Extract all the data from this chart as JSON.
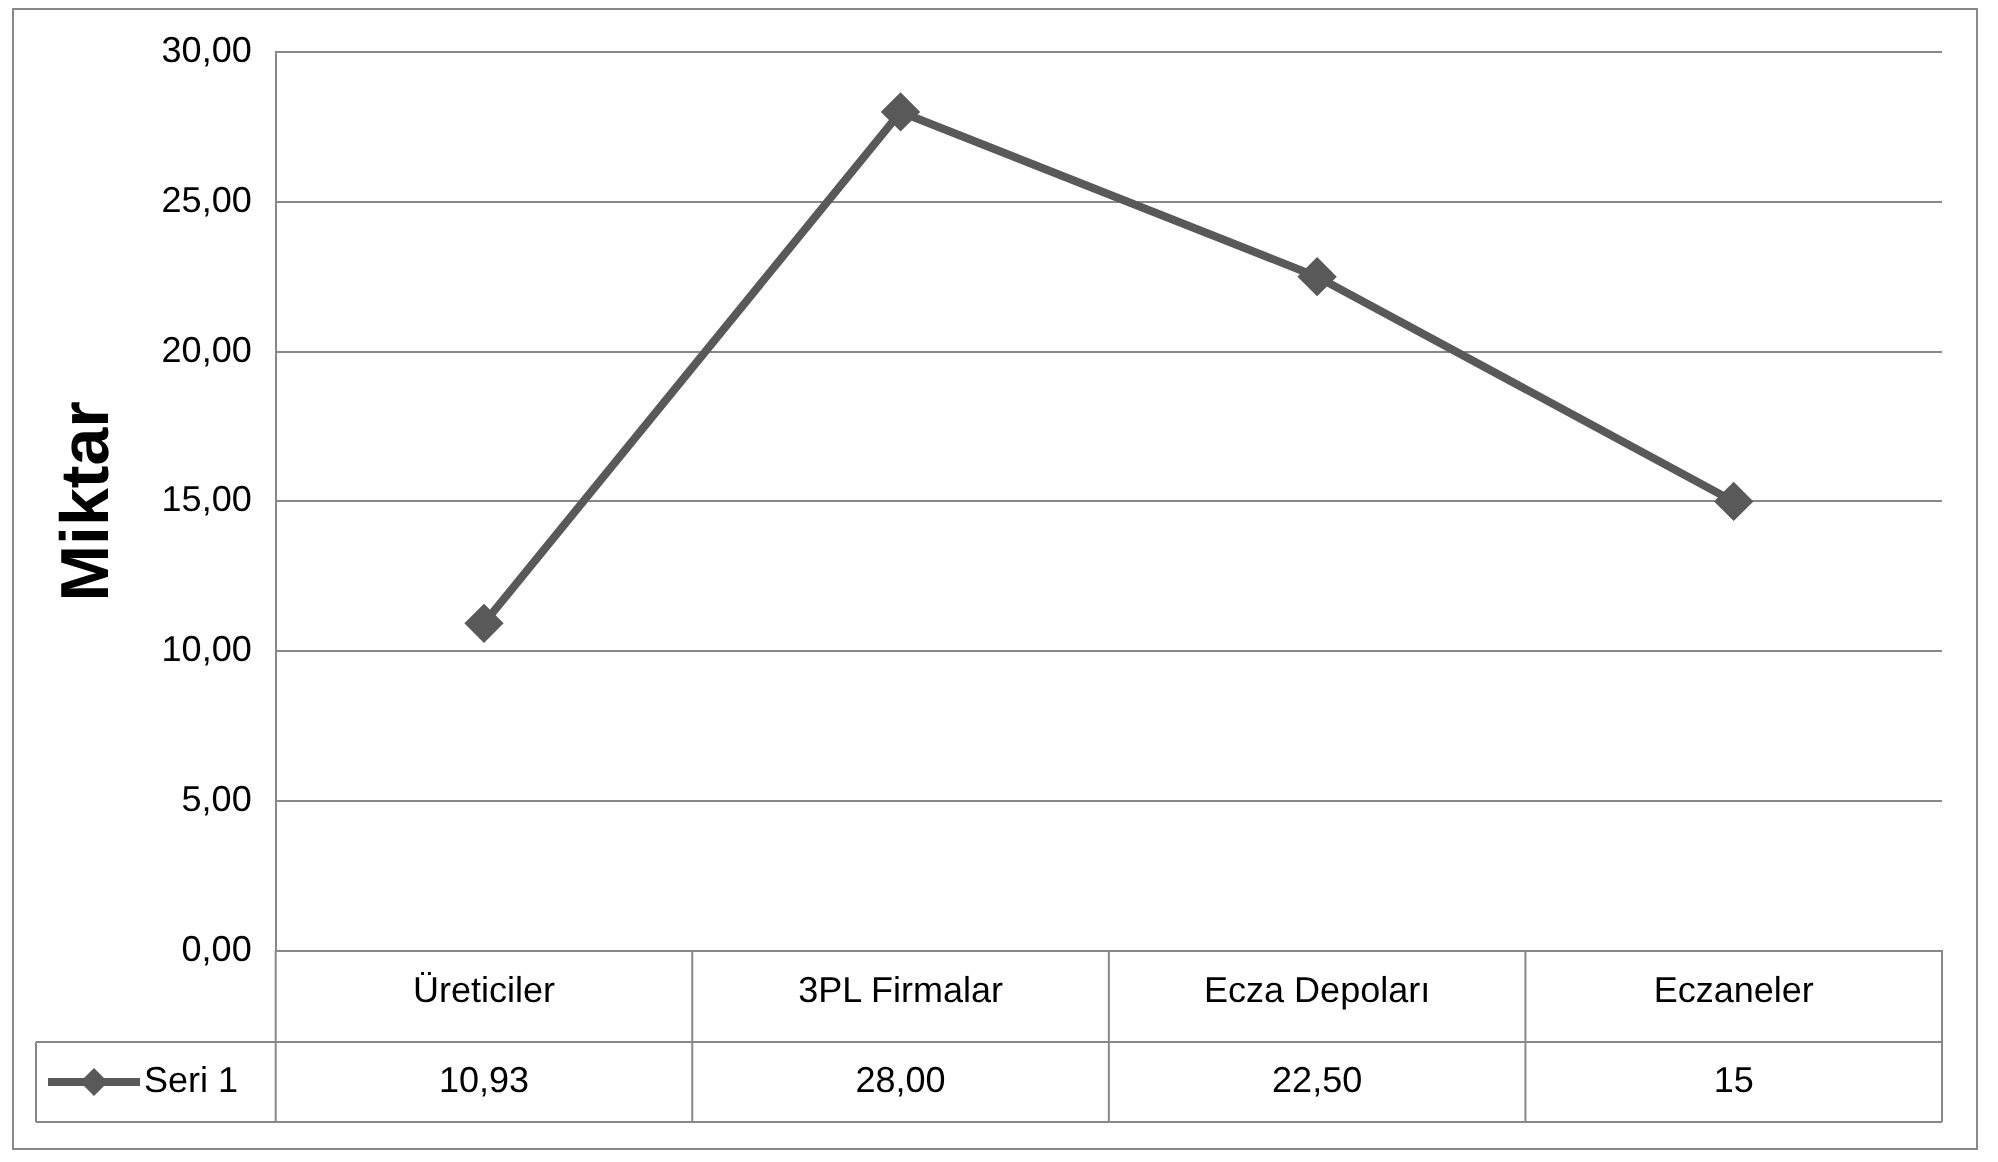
{
  "chart_data": {
    "type": "line",
    "ylabel": "Miktar",
    "categories": [
      "Üreticiler",
      "3PL Firmalar",
      "Ecza Depoları",
      "Eczaneler"
    ],
    "series": [
      {
        "name": "Seri 1",
        "color": "#595959",
        "values": [
          10.93,
          28.0,
          22.5,
          15
        ],
        "value_labels": [
          "10,93",
          "28,00",
          "22,50",
          "15"
        ]
      }
    ],
    "ylim": [
      0,
      30
    ],
    "yticks": [
      {
        "value": 0,
        "label": "0,00"
      },
      {
        "value": 5,
        "label": "5,00"
      },
      {
        "value": 10,
        "label": "10,00"
      },
      {
        "value": 15,
        "label": "15,00"
      },
      {
        "value": 20,
        "label": "20,00"
      },
      {
        "value": 25,
        "label": "25,00"
      },
      {
        "value": 30,
        "label": "30,00"
      }
    ],
    "grid": "y",
    "legend": "bottom",
    "marker": "diamond",
    "line_style": "solid"
  }
}
